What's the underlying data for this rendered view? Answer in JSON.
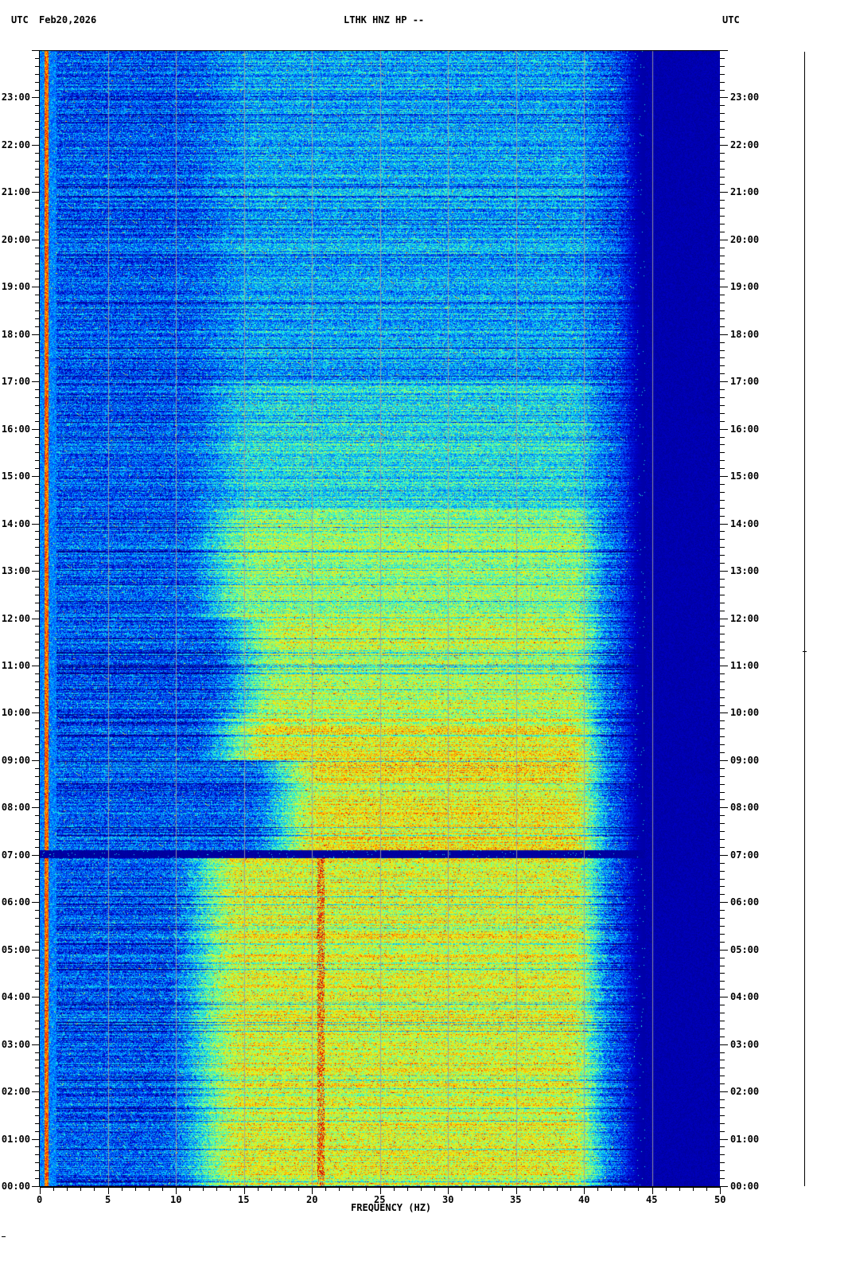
{
  "header": {
    "left_tz": "UTC",
    "date": "Feb20,2026",
    "title": "LTHK HNZ HP --",
    "right_tz": "UTC"
  },
  "chart_data": {
    "type": "heatmap",
    "title": "LTHK HNZ HP --",
    "xlabel": "FREQUENCY (HZ)",
    "ylabel": "",
    "xlim": [
      0,
      50
    ],
    "ylim": [
      "00:00",
      "24:00"
    ],
    "x_ticks": [
      "0",
      "5",
      "10",
      "15",
      "20",
      "25",
      "30",
      "35",
      "40",
      "45",
      "50"
    ],
    "x_minor_tick_step": 1,
    "y_ticks": [
      "00:00",
      "01:00",
      "02:00",
      "03:00",
      "04:00",
      "05:00",
      "06:00",
      "07:00",
      "08:00",
      "09:00",
      "10:00",
      "11:00",
      "12:00",
      "13:00",
      "14:00",
      "15:00",
      "16:00",
      "17:00",
      "18:00",
      "19:00",
      "20:00",
      "21:00",
      "22:00",
      "23:00"
    ],
    "y_minor_tick_minutes": 10,
    "grid": "vertical every 5 Hz",
    "colormap": [
      "#00006e",
      "#0000c8",
      "#0050ff",
      "#00c8ff",
      "#40ffc0",
      "#c8ff40",
      "#ffe000",
      "#ff6000",
      "#d00000"
    ],
    "features": {
      "quiet_gap_time": "07:00",
      "strong_energy_band_hz": [
        12,
        42
      ],
      "rolloff_hz": 44
    }
  }
}
